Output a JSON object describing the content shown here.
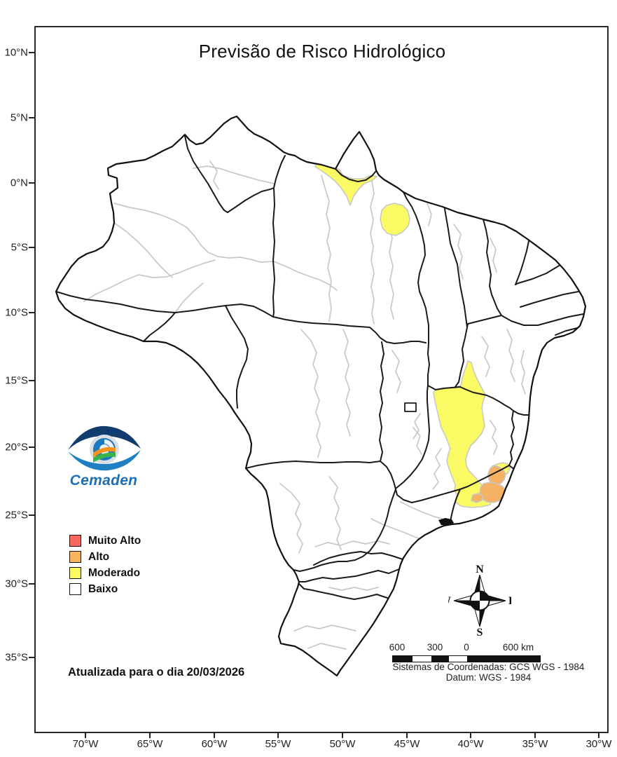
{
  "title": "Previsão de Risco Hidrológico",
  "logo": {
    "text": "Cemaden"
  },
  "legend": {
    "items": [
      {
        "label": "Muito Alto",
        "color": "#F9695F"
      },
      {
        "label": "Alto",
        "color": "#F7B45F"
      },
      {
        "label": "Moderado",
        "color": "#FAFA64"
      },
      {
        "label": "Baixo",
        "color": "#FFFFFF"
      }
    ]
  },
  "update_note": "Atualizada para o dia 20/03/2026",
  "compass": {
    "north": "N",
    "south": "S",
    "east": "E",
    "west": "W"
  },
  "scale_bar": {
    "labels": [
      "600",
      "300",
      "0",
      "600 km"
    ]
  },
  "map_info": {
    "line1": "Sistemas de Coordenadas: GCS WGS - 1984",
    "line2": "Datum: WGS - 1984"
  },
  "axes": {
    "latitude_labels": [
      "10°N",
      "5°N",
      "0°N",
      "5°S",
      "10°S",
      "15°S",
      "20°S",
      "25°S",
      "30°S",
      "35°S"
    ],
    "longitude_labels": [
      "70°W",
      "65°W",
      "60°W",
      "55°W",
      "50°W",
      "45°W",
      "40°W",
      "35°W",
      "30°W"
    ]
  },
  "map": {
    "risk_colors": {
      "moderado": "#FAFA64",
      "alto": "#F5B264"
    },
    "border_color": "#111111",
    "state_line_color": "#1a1a1a",
    "subregion_line_color": "#C8C8C8",
    "land_color": "#FFFFFF"
  }
}
